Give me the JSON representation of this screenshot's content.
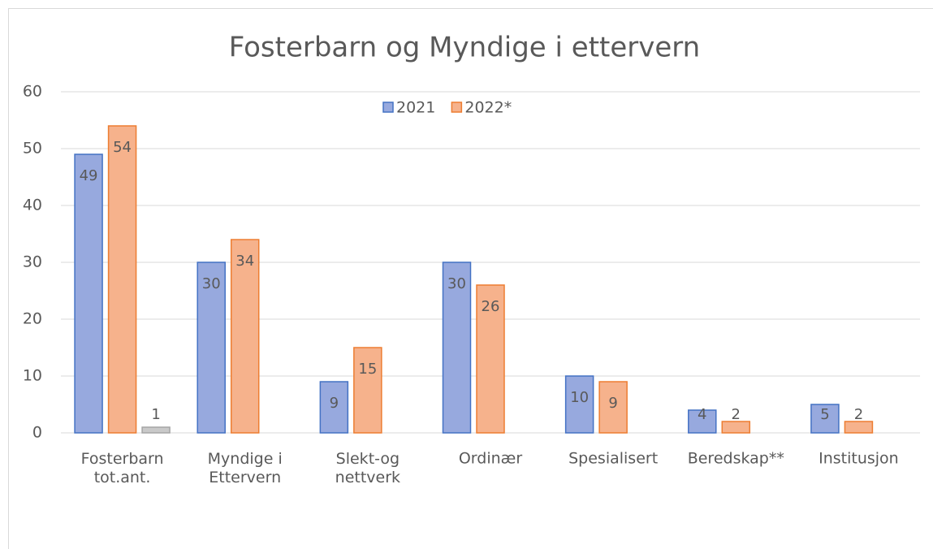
{
  "chart_data": {
    "type": "bar",
    "title": "Fosterbarn og Myndige i ettervern",
    "categories": [
      "Fosterbarn\ntot.ant.",
      "Myndige i\nEttervern",
      "Slekt-og\nnettverk",
      "Ordinær",
      "Spesialisert",
      "Beredskap**",
      "Institusjon"
    ],
    "series": [
      {
        "name": "2021",
        "color": "#97a9de",
        "edgecolor": "#4472c4",
        "values": [
          49,
          30,
          9,
          30,
          10,
          4,
          5
        ]
      },
      {
        "name": "2022*",
        "color": "#f6b28c",
        "edgecolor": "#ed7d31",
        "values": [
          54,
          34,
          15,
          26,
          9,
          2,
          2
        ]
      },
      {
        "color": "#c9c9c9",
        "edgecolor": "#a5a5a5",
        "values": [
          1,
          null,
          null,
          null,
          null,
          null,
          null
        ]
      }
    ],
    "ylim": [
      0,
      60
    ],
    "yticks": [
      0,
      10,
      20,
      30,
      40,
      50,
      60
    ],
    "grid": true,
    "legend": "top"
  }
}
